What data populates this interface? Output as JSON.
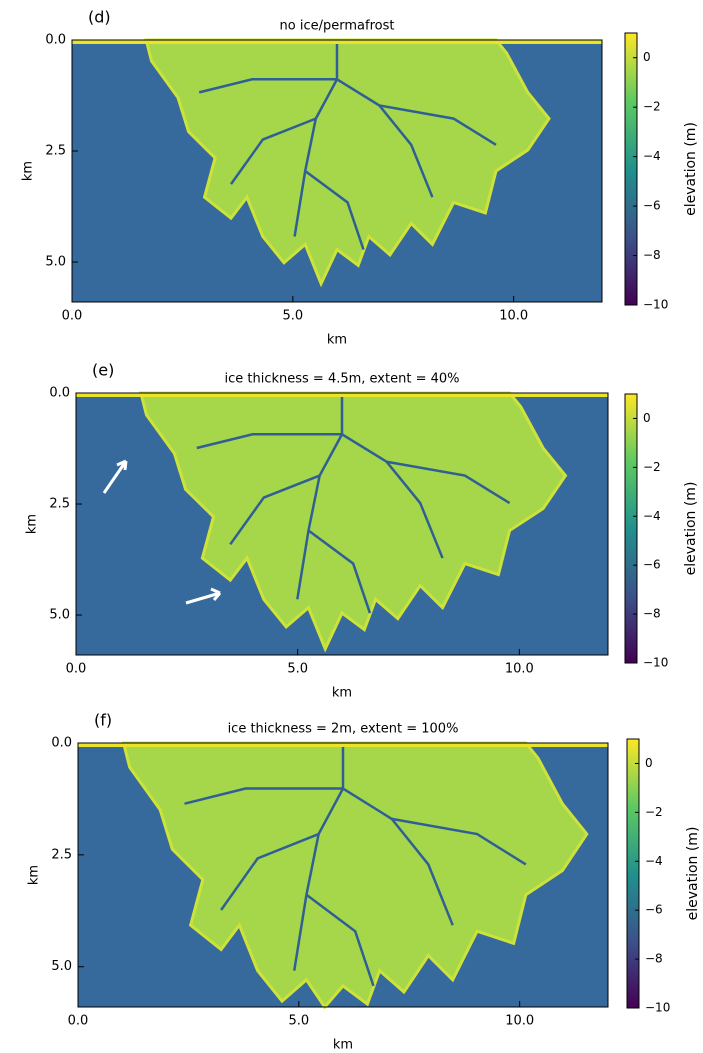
{
  "chart_data": [
    {
      "type": "image",
      "panel_label": "(d)",
      "title": "no ice/permafrost",
      "xlabel": "km",
      "ylabel": "km",
      "xlim": [
        0,
        12
      ],
      "ylim": [
        5.9,
        0
      ],
      "xticks": [
        {
          "value": 0,
          "label": "0.0"
        },
        {
          "value": 5,
          "label": "5.0"
        },
        {
          "value": 10,
          "label": "10.0"
        }
      ],
      "yticks": [
        {
          "value": 0,
          "label": "0.0"
        },
        {
          "value": 2.5,
          "label": "2.5"
        },
        {
          "value": 5,
          "label": "5.0"
        }
      ],
      "colorbar": {
        "label": "elevation (m)",
        "lim": [
          -10,
          1
        ],
        "ticks": [
          {
            "value": 0,
            "label": "0"
          },
          {
            "value": -2,
            "label": "−2"
          },
          {
            "value": -4,
            "label": "−4"
          },
          {
            "value": -6,
            "label": "−6"
          },
          {
            "value": -8,
            "label": "−8"
          },
          {
            "value": -10,
            "label": "−10"
          }
        ]
      }
    },
    {
      "type": "image",
      "panel_label": "(e)",
      "title": "ice thickness = 4.5m, extent = 40%",
      "xlabel": "km",
      "ylabel": "km",
      "xlim": [
        0,
        12
      ],
      "ylim": [
        5.9,
        0
      ],
      "xticks": [
        {
          "value": 0,
          "label": "0.0"
        },
        {
          "value": 5,
          "label": "5.0"
        },
        {
          "value": 10,
          "label": "10.0"
        }
      ],
      "yticks": [
        {
          "value": 0,
          "label": "0.0"
        },
        {
          "value": 2.5,
          "label": "2.5"
        },
        {
          "value": 5,
          "label": "5.0"
        }
      ],
      "colorbar": {
        "label": "elevation (m)",
        "lim": [
          -10,
          1
        ],
        "ticks": [
          {
            "value": 0,
            "label": "0"
          },
          {
            "value": -2,
            "label": "−2"
          },
          {
            "value": -4,
            "label": "−4"
          },
          {
            "value": -6,
            "label": "−6"
          },
          {
            "value": -8,
            "label": "−8"
          },
          {
            "value": -10,
            "label": "−10"
          }
        ]
      }
    },
    {
      "type": "image",
      "panel_label": "(f)",
      "title": "ice thickness = 2m, extent = 100%",
      "xlabel": "km",
      "ylabel": "km",
      "xlim": [
        0,
        12
      ],
      "ylim": [
        5.9,
        0
      ],
      "xticks": [
        {
          "value": 0,
          "label": "0.0"
        },
        {
          "value": 5,
          "label": "5.0"
        },
        {
          "value": 10,
          "label": "10.0"
        }
      ],
      "yticks": [
        {
          "value": 0,
          "label": "0.0"
        },
        {
          "value": 2.5,
          "label": "2.5"
        },
        {
          "value": 5,
          "label": "5.0"
        }
      ],
      "colorbar": {
        "label": "elevation (m)",
        "lim": [
          -10,
          1
        ],
        "ticks": [
          {
            "value": 0,
            "label": "0"
          },
          {
            "value": -2,
            "label": "−2"
          },
          {
            "value": -4,
            "label": "−4"
          },
          {
            "value": -6,
            "label": "−6"
          },
          {
            "value": -8,
            "label": "−8"
          },
          {
            "value": -10,
            "label": "−10"
          }
        ]
      }
    }
  ]
}
